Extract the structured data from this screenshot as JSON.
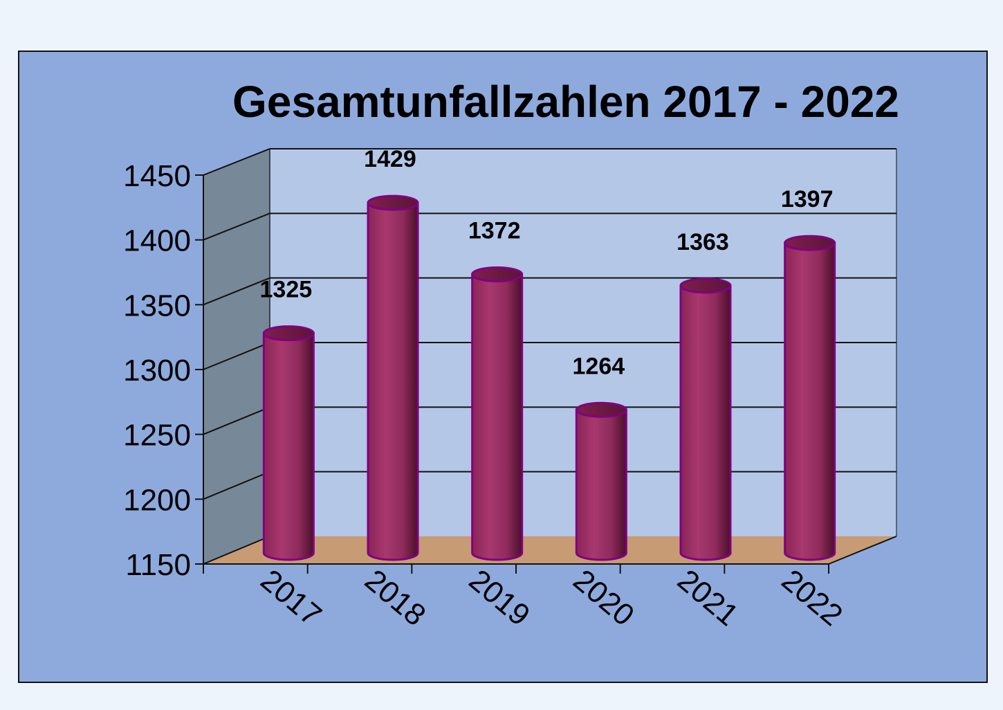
{
  "chart_data": {
    "type": "bar",
    "title": "Gesamtunfallzahlen 2017  - 2022",
    "categories": [
      "2017",
      "2018",
      "2019",
      "2020",
      "2021",
      "2022"
    ],
    "values": [
      1325,
      1429,
      1372,
      1264,
      1363,
      1397
    ],
    "data_labels": [
      "1325",
      "1429",
      "1372",
      "1264",
      "1363",
      "1397"
    ],
    "ylim": [
      1150,
      1450
    ],
    "y_ticks": [
      "1450",
      "1400",
      "1350",
      "1300",
      "1250",
      "1200",
      "1150"
    ],
    "xlabel": "",
    "ylabel": "",
    "grid": true,
    "style": "3d-cylinder",
    "colors": {
      "frame_background": "#8eaadd",
      "back_wall": "#b4c7e7",
      "side_wall": "#778899",
      "floor": "#c79b73",
      "bar": "#a3366a",
      "bar_outline": "#800080",
      "page_background": "#eef4fc"
    }
  }
}
